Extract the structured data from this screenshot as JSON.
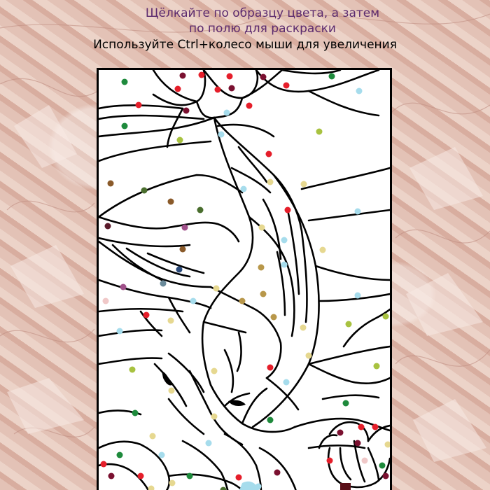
{
  "instructions": {
    "line1": "Щёлкайте по образцу цвета, а затем",
    "line2": "по полю для раскраски",
    "line3": "Используйте Ctrl+колесо мыши для увеличения"
  },
  "coloring_page": {
    "subject": "koi-fish-and-lotus",
    "region_hint_colors": [
      "#1e8a3c",
      "#e51e2a",
      "#7a1030",
      "#a6dcec",
      "#a8c240",
      "#b8974a",
      "#e6d890",
      "#8a5a2a",
      "#4a6e2e",
      "#2a4a7a",
      "#a0508a",
      "#6a8a9a",
      "#f0c8c8"
    ]
  }
}
